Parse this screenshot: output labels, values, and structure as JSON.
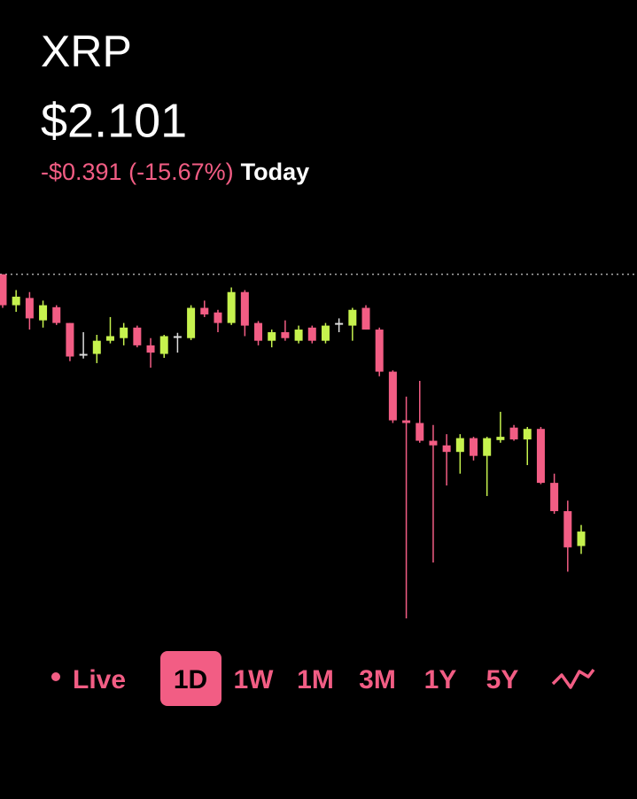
{
  "header": {
    "title": "XRP",
    "price": "$2.101",
    "change": "-$0.391 (-15.67%)",
    "period": "Today"
  },
  "chart_data": {
    "type": "candlestick",
    "ylim": [
      1.953,
      2.505
    ],
    "baseline": 2.492,
    "colors": {
      "up": "#c6f24e",
      "down": "#f25d84",
      "flat": "#dddddd",
      "baseline": "#aaaaaa"
    },
    "open": [
      2.492,
      2.445,
      2.456,
      2.422,
      2.442,
      2.418,
      2.371,
      2.371,
      2.391,
      2.395,
      2.411,
      2.384,
      2.371,
      2.398,
      2.395,
      2.441,
      2.434,
      2.418,
      2.465,
      2.418,
      2.391,
      2.404,
      2.391,
      2.411,
      2.391,
      2.418,
      2.414,
      2.441,
      2.408,
      2.344,
      2.27,
      2.266,
      2.239,
      2.232,
      2.222,
      2.243,
      2.216,
      2.24,
      2.259,
      2.241,
      2.257,
      2.175,
      2.132,
      2.079
    ],
    "high": [
      2.492,
      2.468,
      2.465,
      2.452,
      2.445,
      2.418,
      2.404,
      2.4,
      2.427,
      2.418,
      2.414,
      2.395,
      2.4,
      2.403,
      2.445,
      2.452,
      2.438,
      2.472,
      2.468,
      2.421,
      2.408,
      2.422,
      2.414,
      2.414,
      2.418,
      2.425,
      2.441,
      2.445,
      2.411,
      2.346,
      2.306,
      2.33,
      2.263,
      2.249,
      2.249,
      2.245,
      2.245,
      2.283,
      2.263,
      2.26,
      2.26,
      2.189,
      2.148,
      2.111
    ],
    "low": [
      2.441,
      2.435,
      2.408,
      2.411,
      2.415,
      2.36,
      2.364,
      2.357,
      2.387,
      2.384,
      2.381,
      2.35,
      2.365,
      2.373,
      2.392,
      2.427,
      2.404,
      2.415,
      2.398,
      2.384,
      2.381,
      2.391,
      2.387,
      2.387,
      2.387,
      2.404,
      2.391,
      2.408,
      2.337,
      2.266,
      1.969,
      2.236,
      2.054,
      2.171,
      2.189,
      2.209,
      2.155,
      2.236,
      2.239,
      2.202,
      2.173,
      2.128,
      2.04,
      2.067
    ],
    "close": [
      2.445,
      2.458,
      2.425,
      2.445,
      2.418,
      2.367,
      2.371,
      2.391,
      2.398,
      2.411,
      2.384,
      2.373,
      2.398,
      2.398,
      2.441,
      2.431,
      2.418,
      2.465,
      2.414,
      2.391,
      2.404,
      2.395,
      2.408,
      2.391,
      2.414,
      2.418,
      2.438,
      2.408,
      2.344,
      2.27,
      2.266,
      2.239,
      2.232,
      2.222,
      2.243,
      2.216,
      2.243,
      2.245,
      2.241,
      2.257,
      2.175,
      2.132,
      2.077,
      2.101
    ]
  },
  "ranges": {
    "live": "Live",
    "options": [
      "1D",
      "1W",
      "1M",
      "3M",
      "1Y",
      "5Y"
    ],
    "selected_index": 0
  }
}
